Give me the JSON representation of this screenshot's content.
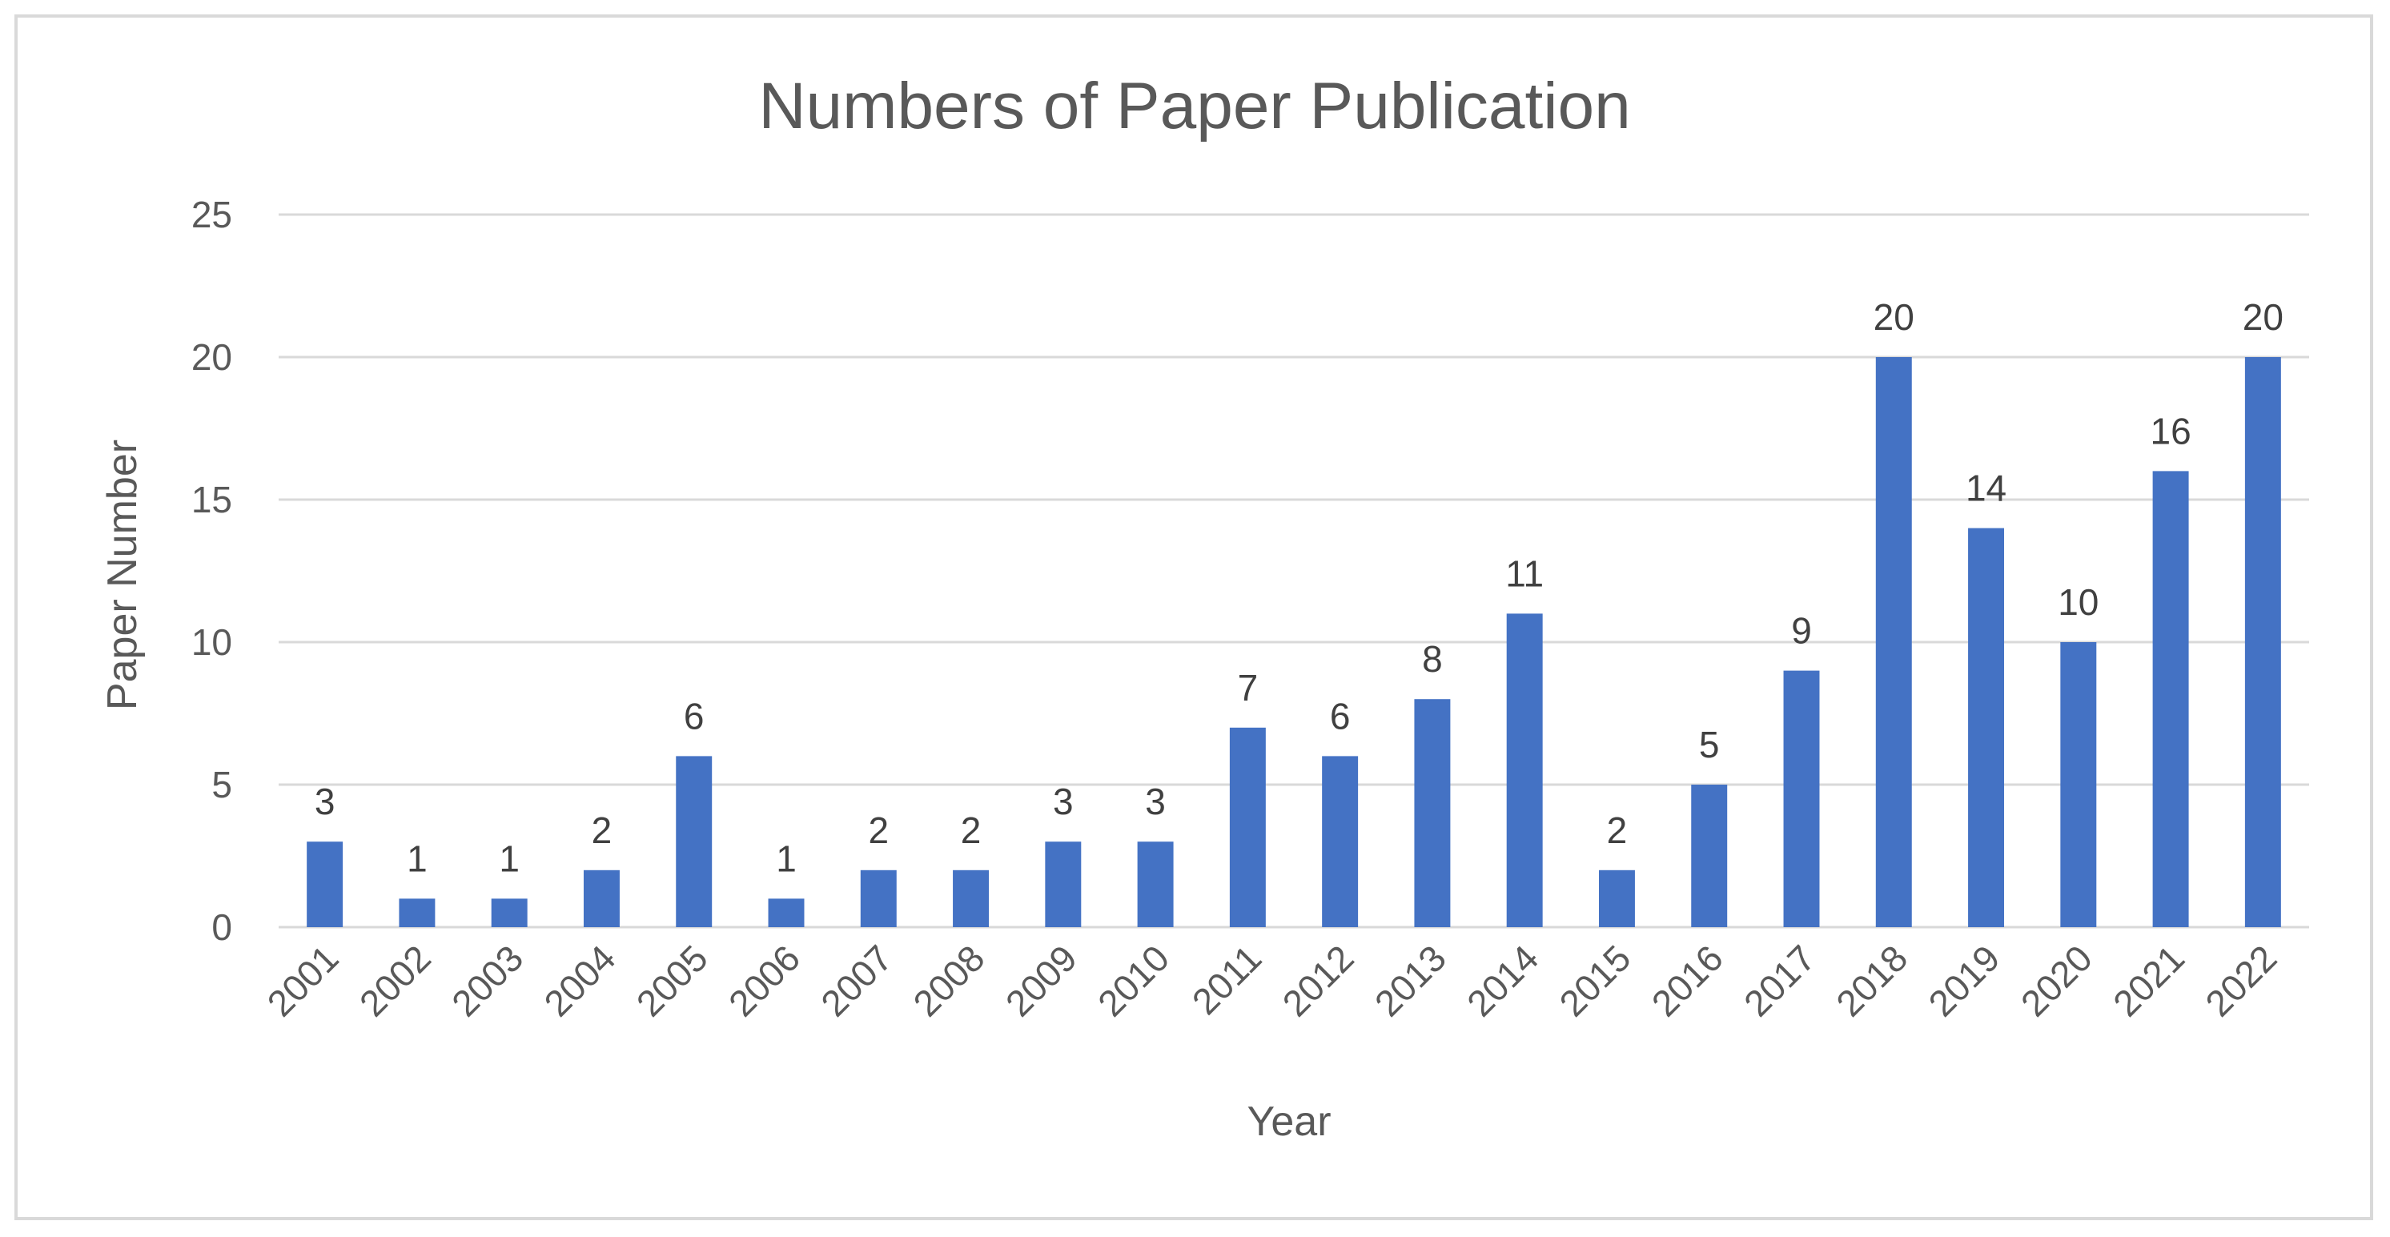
{
  "chart_data": {
    "type": "bar",
    "title": "Numbers of Paper Publication",
    "xlabel": "Year",
    "ylabel": "Paper Number",
    "categories": [
      "2001",
      "2002",
      "2003",
      "2004",
      "2005",
      "2006",
      "2007",
      "2008",
      "2009",
      "2010",
      "2011",
      "2012",
      "2013",
      "2014",
      "2015",
      "2016",
      "2017",
      "2018",
      "2019",
      "2020",
      "2021",
      "2022"
    ],
    "values": [
      3,
      1,
      1,
      2,
      6,
      1,
      2,
      2,
      3,
      3,
      7,
      6,
      8,
      11,
      2,
      5,
      9,
      20,
      14,
      10,
      16,
      20
    ],
    "ylim": [
      0,
      25
    ],
    "yticks": [
      "0",
      "5",
      "10",
      "15",
      "20",
      "25"
    ],
    "grid": true,
    "legend": "none",
    "colors": {
      "bar": "#4472c4",
      "grid": "#d9d9d9",
      "text": "#595959"
    }
  }
}
